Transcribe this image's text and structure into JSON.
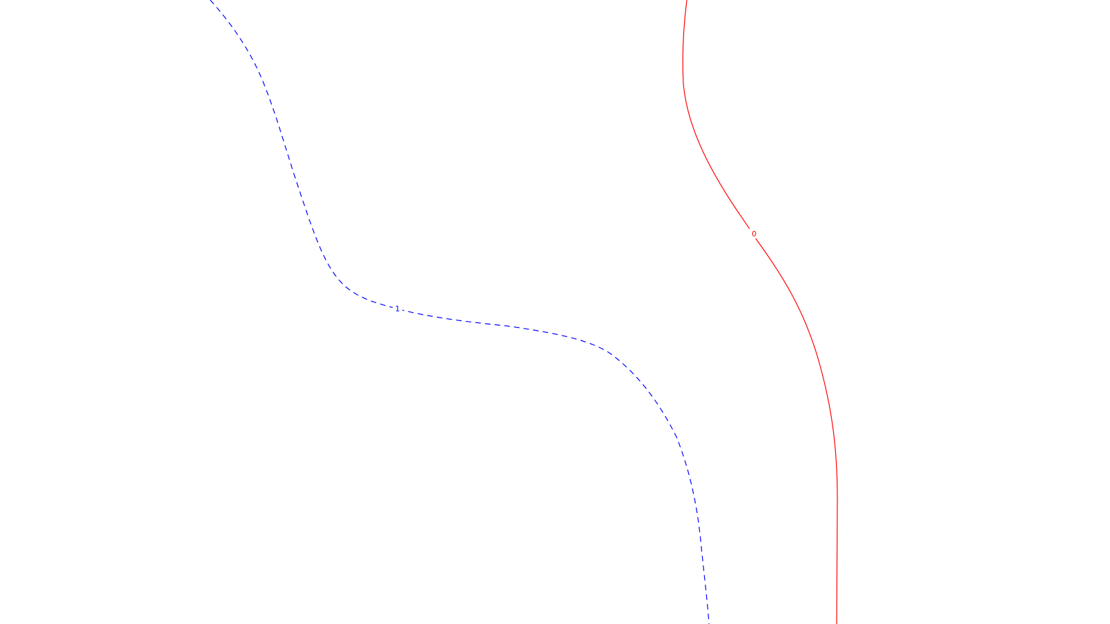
{
  "contours": [
    {
      "label": "1",
      "color": "#0000ff",
      "style": "dashed"
    },
    {
      "label": "0",
      "color": "#ff0000",
      "style": "solid"
    }
  ]
}
